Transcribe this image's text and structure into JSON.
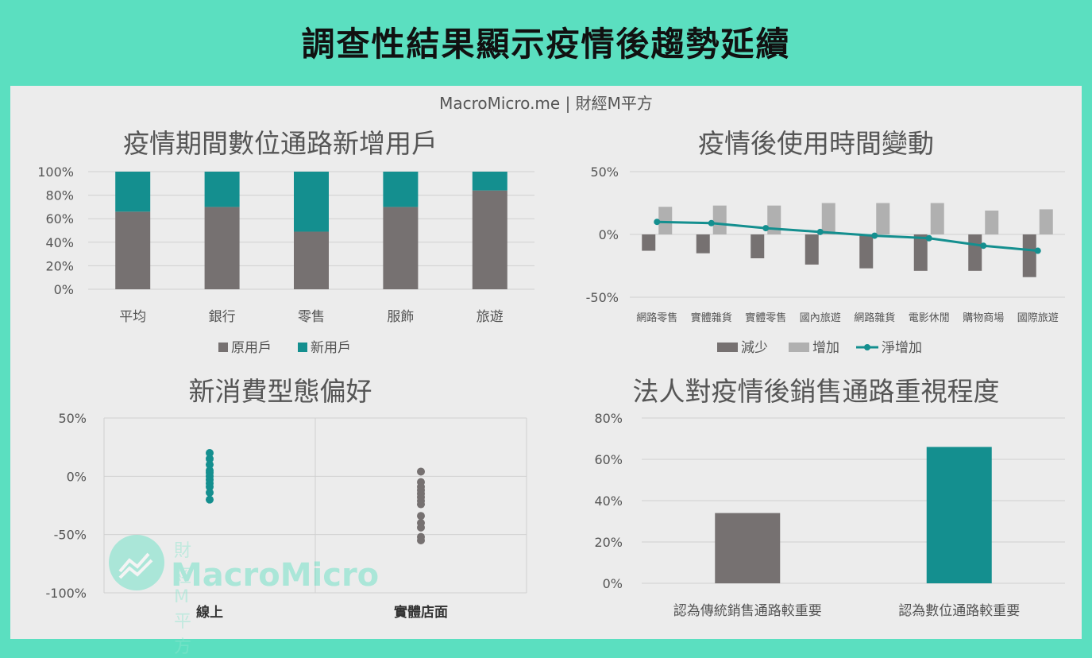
{
  "page_title": "調查性結果顯示疫情後趨勢延續",
  "source": "MacroMicro.me | 財經M平方",
  "watermark": {
    "sub": "財 經 M 平 方",
    "main": "MacroMicro"
  },
  "colors": {
    "teal": "#148f8f",
    "gray": "#767171",
    "light_gray": "#b0b0b0",
    "background": "#5bdfc0"
  },
  "chart_data": [
    {
      "id": "c1",
      "type": "bar",
      "stacked": true,
      "title": "疫情期間數位通路新增用戶",
      "categories": [
        "平均",
        "銀行",
        "零售",
        "服飾",
        "旅遊"
      ],
      "series": [
        {
          "name": "原用戶",
          "color": "#767171",
          "values": [
            66,
            70,
            49,
            70,
            84
          ]
        },
        {
          "name": "新用戶",
          "color": "#148f8f",
          "values": [
            34,
            30,
            51,
            30,
            16
          ]
        }
      ],
      "ylim": [
        0,
        100
      ],
      "yticks": [
        "0%",
        "20%",
        "40%",
        "60%",
        "80%",
        "100%"
      ],
      "legend": "bottom",
      "grid": true
    },
    {
      "id": "c2",
      "type": "bar",
      "title": "疫情後使用時間變動",
      "categories": [
        "網路零售",
        "實體雜貨",
        "實體零售",
        "國內旅遊",
        "網路雜貨",
        "電影休閒",
        "購物商場",
        "國際旅遊"
      ],
      "series": [
        {
          "name": "減少",
          "type": "bar",
          "color": "#767171",
          "values": [
            -13,
            -15,
            -19,
            -24,
            -27,
            -29,
            -29,
            -34
          ]
        },
        {
          "name": "增加",
          "type": "bar",
          "color": "#b0b0b0",
          "values": [
            22,
            23,
            23,
            25,
            25,
            25,
            19,
            20
          ]
        },
        {
          "name": "淨增加",
          "type": "line",
          "color": "#148f8f",
          "values": [
            10,
            9,
            5,
            2,
            -1,
            -3,
            -9,
            -13
          ]
        }
      ],
      "ylim": [
        -50,
        50
      ],
      "yticks": [
        "-50%",
        "0%",
        "50%"
      ],
      "legend": "bottom",
      "grid": true
    },
    {
      "id": "c3",
      "type": "scatter",
      "title": "新消費型態偏好",
      "categories": [
        "線上",
        "實體店面"
      ],
      "series": [
        {
          "name": "線上",
          "color": "#148f8f",
          "values": [
            20,
            15,
            10,
            5,
            3,
            0,
            -3,
            -6,
            -9,
            -14,
            -20
          ]
        },
        {
          "name": "實體店面",
          "color": "#767171",
          "values": [
            4,
            -5,
            -9,
            -12,
            -15,
            -18,
            -21,
            -24,
            -34,
            -40,
            -44,
            -52,
            -55
          ]
        }
      ],
      "ylim": [
        -100,
        50
      ],
      "yticks": [
        "-100%",
        "-50%",
        "0%",
        "50%"
      ],
      "grid": true
    },
    {
      "id": "c4",
      "type": "bar",
      "title": "法人對疫情後銷售通路重視程度",
      "categories": [
        "認為傳統銷售通路較重要",
        "認為數位通路較重要"
      ],
      "values": [
        34,
        66
      ],
      "colors": [
        "#767171",
        "#148f8f"
      ],
      "ylim": [
        0,
        80
      ],
      "yticks": [
        "0%",
        "20%",
        "40%",
        "60%",
        "80%"
      ],
      "grid": true
    }
  ]
}
